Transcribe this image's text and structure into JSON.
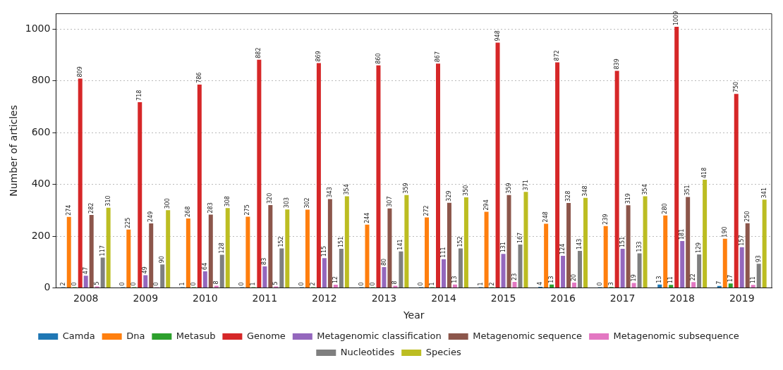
{
  "chart_data": {
    "type": "bar",
    "xlabel": "Year",
    "ylabel": "Number of articles",
    "categories": [
      "2008",
      "2009",
      "2010",
      "2011",
      "2012",
      "2013",
      "2014",
      "2015",
      "2016",
      "2017",
      "2018",
      "2019"
    ],
    "series": [
      {
        "name": "Camda",
        "color": "#1f77b4",
        "values": [
          2,
          0,
          1,
          0,
          0,
          0,
          0,
          1,
          4,
          0,
          13,
          7
        ]
      },
      {
        "name": "Dna",
        "color": "#ff7f0e",
        "values": [
          274,
          225,
          268,
          275,
          302,
          244,
          272,
          294,
          248,
          239,
          280,
          190
        ]
      },
      {
        "name": "Metasub",
        "color": "#2ca02c",
        "values": [
          0,
          0,
          0,
          1,
          2,
          0,
          1,
          2,
          13,
          3,
          11,
          17
        ]
      },
      {
        "name": "Genome",
        "color": "#d62728",
        "values": [
          809,
          718,
          786,
          882,
          869,
          860,
          867,
          948,
          872,
          839,
          1009,
          750
        ]
      },
      {
        "name": "Metagenomic classification",
        "color": "#9467bd",
        "values": [
          47,
          49,
          64,
          83,
          115,
          80,
          111,
          131,
          124,
          151,
          181,
          157
        ]
      },
      {
        "name": "Metagenomic sequence",
        "color": "#8c564b",
        "values": [
          282,
          249,
          283,
          320,
          343,
          307,
          329,
          359,
          328,
          319,
          351,
          250
        ]
      },
      {
        "name": "Metagenomic subsequence",
        "color": "#e377c2",
        "values": [
          5,
          0,
          8,
          5,
          12,
          8,
          13,
          23,
          20,
          19,
          22,
          11
        ]
      },
      {
        "name": "Nucleotides",
        "color": "#7f7f7f",
        "values": [
          117,
          90,
          128,
          152,
          151,
          141,
          152,
          167,
          143,
          133,
          129,
          93
        ]
      },
      {
        "name": "Species",
        "color": "#bcbd22",
        "values": [
          310,
          300,
          308,
          303,
          354,
          359,
          350,
          371,
          348,
          354,
          418,
          341
        ]
      }
    ],
    "ylim": [
      0,
      1060
    ],
    "yticks": [
      0,
      200,
      400,
      600,
      800,
      1000
    ],
    "grid": "y",
    "legend": "bottom",
    "data_labels": true
  }
}
